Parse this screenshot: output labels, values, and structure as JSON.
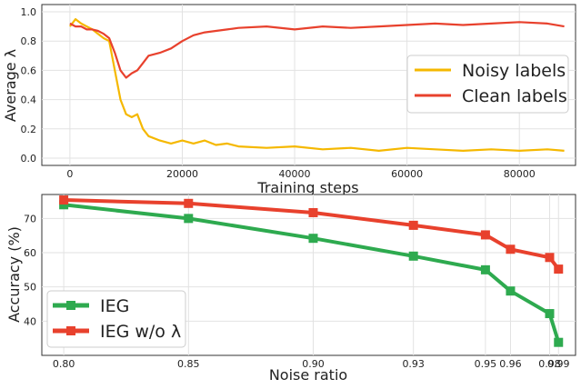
{
  "chart_data": [
    {
      "type": "line",
      "xlabel": "Training steps",
      "ylabel": "Average  λ",
      "xlim": [
        -5000,
        90000
      ],
      "ylim": [
        -0.05,
        1.05
      ],
      "xticks": [
        0,
        20000,
        40000,
        60000,
        80000
      ],
      "xtick_labels": [
        "0",
        "20000",
        "40000",
        "60000",
        "80000"
      ],
      "yticks": [
        0.0,
        0.2,
        0.4,
        0.6,
        0.8,
        1.0
      ],
      "ytick_labels": [
        "0.0",
        "0.2",
        "0.4",
        "0.6",
        "0.8",
        "1.0"
      ],
      "grid": true,
      "legend_position": "right",
      "series": [
        {
          "name": "Noisy labels",
          "color": "#f5b800",
          "x": [
            0,
            1000,
            2000,
            3000,
            4000,
            5000,
            6000,
            7000,
            8000,
            9000,
            10000,
            11000,
            12000,
            13000,
            14000,
            16000,
            18000,
            20000,
            22000,
            24000,
            26000,
            28000,
            30000,
            35000,
            40000,
            45000,
            50000,
            55000,
            60000,
            65000,
            70000,
            75000,
            80000,
            85000,
            88000
          ],
          "y": [
            0.9,
            0.95,
            0.92,
            0.9,
            0.88,
            0.85,
            0.82,
            0.8,
            0.6,
            0.4,
            0.3,
            0.28,
            0.3,
            0.2,
            0.15,
            0.12,
            0.1,
            0.12,
            0.1,
            0.12,
            0.09,
            0.1,
            0.08,
            0.07,
            0.08,
            0.06,
            0.07,
            0.05,
            0.07,
            0.06,
            0.05,
            0.06,
            0.05,
            0.06,
            0.05
          ]
        },
        {
          "name": "Clean labels",
          "color": "#e8412d",
          "x": [
            0,
            1000,
            2000,
            3000,
            4000,
            5000,
            6000,
            7000,
            8000,
            9000,
            10000,
            11000,
            12000,
            13000,
            14000,
            16000,
            18000,
            20000,
            22000,
            24000,
            26000,
            28000,
            30000,
            35000,
            40000,
            45000,
            50000,
            55000,
            60000,
            65000,
            70000,
            75000,
            80000,
            85000,
            88000
          ],
          "y": [
            0.92,
            0.9,
            0.9,
            0.88,
            0.88,
            0.87,
            0.85,
            0.82,
            0.72,
            0.6,
            0.55,
            0.58,
            0.6,
            0.65,
            0.7,
            0.72,
            0.75,
            0.8,
            0.84,
            0.86,
            0.87,
            0.88,
            0.89,
            0.9,
            0.88,
            0.9,
            0.89,
            0.9,
            0.91,
            0.92,
            0.91,
            0.92,
            0.93,
            0.92,
            0.9
          ]
        }
      ]
    },
    {
      "type": "line",
      "xlabel": "Noise ratio",
      "ylabel": "Accuracy (%)",
      "categories": [
        "0.80",
        "0.85",
        "0.90",
        "0.93",
        "0.95",
        "0.96",
        "0.98",
        "0.99"
      ],
      "x": [
        0.8,
        0.85,
        0.9,
        0.93,
        0.95,
        0.96,
        0.98,
        0.99
      ],
      "ylim": [
        30,
        77
      ],
      "yticks": [
        40,
        50,
        60,
        70
      ],
      "ytick_labels": [
        "40",
        "50",
        "60",
        "70"
      ],
      "grid": true,
      "legend_position": "lower-left",
      "series": [
        {
          "name": "IEG",
          "color": "#2eaa4f",
          "values": [
            74.0,
            70.0,
            64.2,
            59.0,
            55.0,
            48.8,
            42.2,
            33.8
          ]
        },
        {
          "name": "IEG w/o λ",
          "color": "#e8412d",
          "values": [
            75.4,
            74.4,
            71.7,
            68.0,
            65.2,
            61.0,
            58.6,
            55.2
          ]
        }
      ]
    }
  ]
}
